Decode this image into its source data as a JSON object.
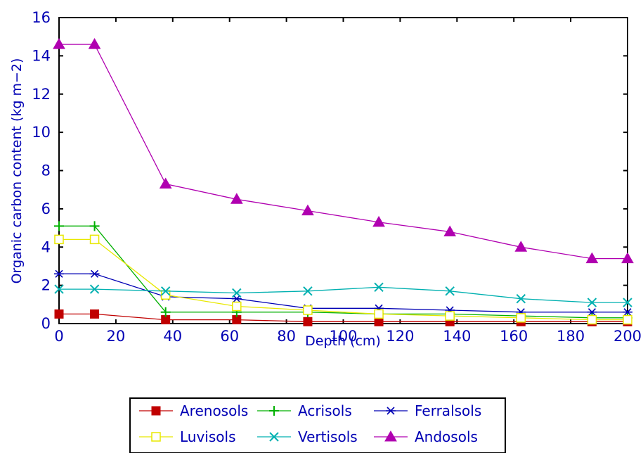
{
  "chart_data": {
    "type": "line",
    "xlabel": "Depth (cm)",
    "ylabel": "Organic carbon content (kg m−2)",
    "xlim": [
      0,
      200
    ],
    "ylim": [
      0,
      16
    ],
    "x_ticks": [
      "0",
      "20",
      "40",
      "60",
      "80",
      "100",
      "120",
      "140",
      "160",
      "180",
      "200"
    ],
    "y_ticks": [
      "0",
      "2",
      "4",
      "6",
      "8",
      "10",
      "12",
      "14",
      "16"
    ],
    "grid": false,
    "legend_position": "bottom",
    "series": [
      {
        "name": "Arenosols",
        "color": "#c00000",
        "marker": "filled-square",
        "points": [
          [
            0,
            0.5
          ],
          [
            12.5,
            0.5
          ],
          [
            37.5,
            0.2
          ],
          [
            62.5,
            0.2
          ],
          [
            87.5,
            0.1
          ],
          [
            112.5,
            0.1
          ],
          [
            137.5,
            0.1
          ],
          [
            162.5,
            0.1
          ],
          [
            187.5,
            0.1
          ],
          [
            200,
            0.1
          ]
        ]
      },
      {
        "name": "Acrisols",
        "color": "#00b000",
        "marker": "plus",
        "points": [
          [
            0,
            5.1
          ],
          [
            12.5,
            5.1
          ],
          [
            37.5,
            0.6
          ],
          [
            62.5,
            0.6
          ],
          [
            87.5,
            0.6
          ],
          [
            112.5,
            0.5
          ],
          [
            137.5,
            0.5
          ],
          [
            162.5,
            0.4
          ],
          [
            187.5,
            0.3
          ],
          [
            200,
            0.3
          ]
        ]
      },
      {
        "name": "Ferralsols",
        "color": "#0000b4",
        "marker": "asterisk",
        "points": [
          [
            0,
            2.6
          ],
          [
            12.5,
            2.6
          ],
          [
            37.5,
            1.4
          ],
          [
            62.5,
            1.3
          ],
          [
            87.5,
            0.8
          ],
          [
            112.5,
            0.8
          ],
          [
            137.5,
            0.7
          ],
          [
            162.5,
            0.6
          ],
          [
            187.5,
            0.6
          ],
          [
            200,
            0.6
          ]
        ]
      },
      {
        "name": "Luvisols",
        "color": "#e8e800",
        "marker": "open-square",
        "points": [
          [
            0,
            4.4
          ],
          [
            12.5,
            4.4
          ],
          [
            37.5,
            1.5
          ],
          [
            62.5,
            0.9
          ],
          [
            87.5,
            0.7
          ],
          [
            112.5,
            0.5
          ],
          [
            137.5,
            0.4
          ],
          [
            162.5,
            0.3
          ],
          [
            187.5,
            0.2
          ],
          [
            200,
            0.2
          ]
        ]
      },
      {
        "name": "Vertisols",
        "color": "#00b0b0",
        "marker": "cross",
        "points": [
          [
            0,
            1.8
          ],
          [
            12.5,
            1.8
          ],
          [
            37.5,
            1.7
          ],
          [
            62.5,
            1.6
          ],
          [
            87.5,
            1.7
          ],
          [
            112.5,
            1.9
          ],
          [
            137.5,
            1.7
          ],
          [
            162.5,
            1.3
          ],
          [
            187.5,
            1.1
          ],
          [
            200,
            1.1
          ]
        ]
      },
      {
        "name": "Andosols",
        "color": "#b000b0",
        "marker": "filled-triangle",
        "points": [
          [
            0,
            14.6
          ],
          [
            12.5,
            14.6
          ],
          [
            37.5,
            7.3
          ],
          [
            62.5,
            6.5
          ],
          [
            87.5,
            5.9
          ],
          [
            112.5,
            5.3
          ],
          [
            137.5,
            4.8
          ],
          [
            162.5,
            4.0
          ],
          [
            187.5,
            3.4
          ],
          [
            200,
            3.4
          ]
        ]
      }
    ]
  }
}
